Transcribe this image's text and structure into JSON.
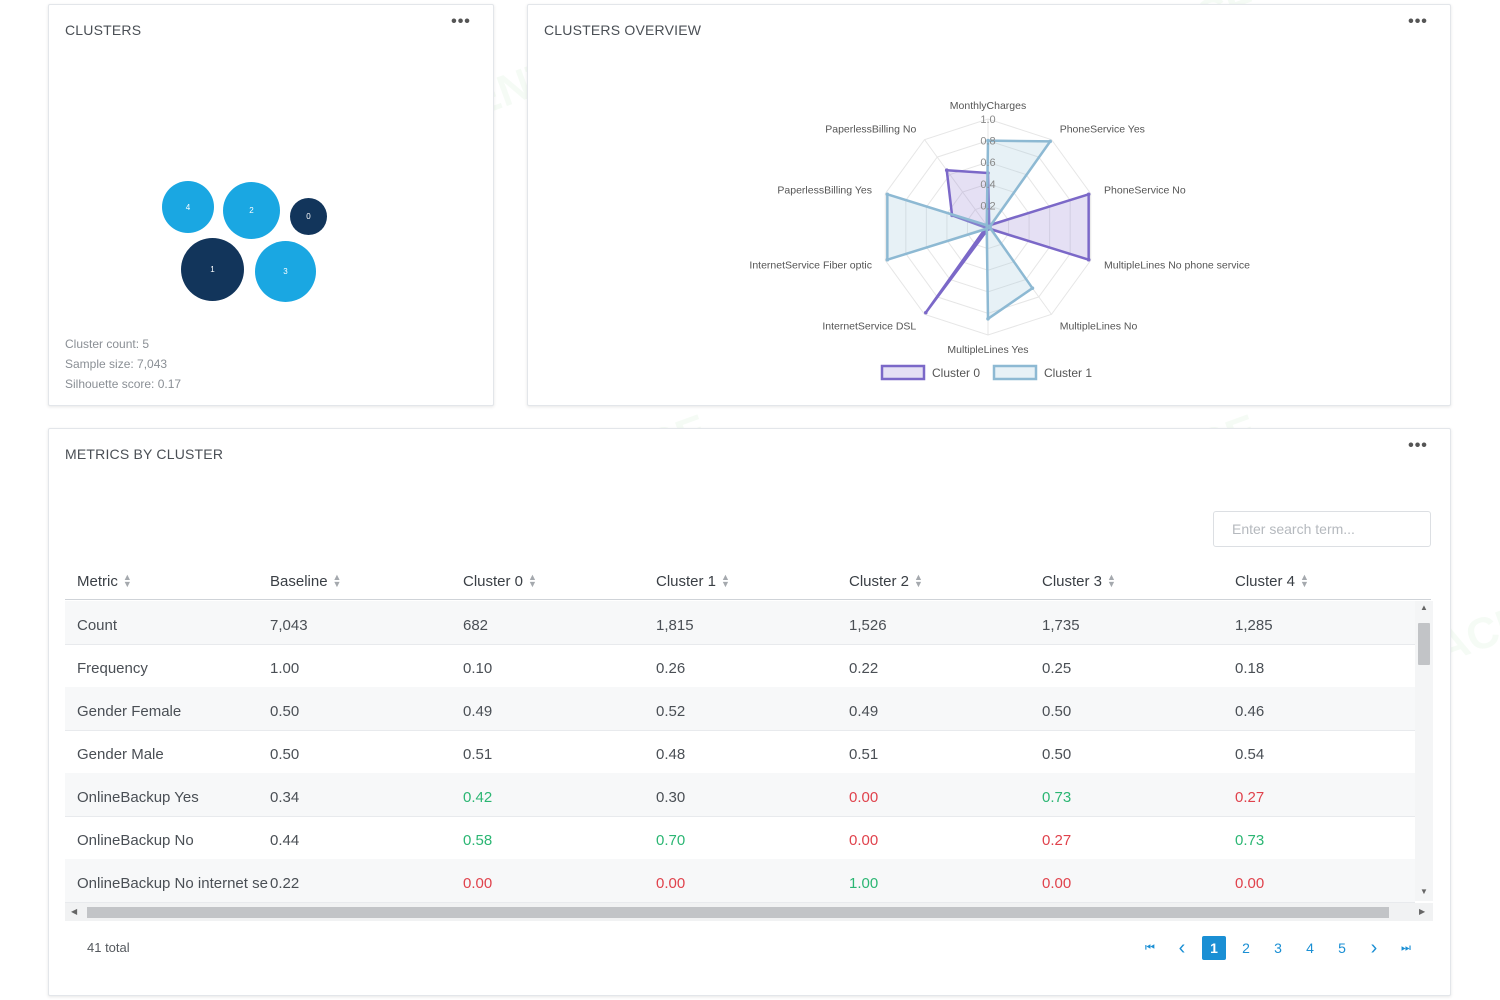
{
  "watermark": "AI TALENT SPACE",
  "clusters_card": {
    "title": "CLUSTERS",
    "more": "•••",
    "bubbles": [
      {
        "label": "4",
        "color": "#1aa7e2"
      },
      {
        "label": "2",
        "color": "#1aa7e2"
      },
      {
        "label": "0",
        "color": "#12355b"
      },
      {
        "label": "1",
        "color": "#12355b"
      },
      {
        "label": "3",
        "color": "#1aa7e2"
      }
    ],
    "stats": {
      "count": "Cluster count: 5",
      "sample": "Sample size: 7,043",
      "silhouette": "Silhouette score: 0.17"
    }
  },
  "overview_card": {
    "title": "CLUSTERS OVERVIEW",
    "more": "•••"
  },
  "chart_data": {
    "type": "radar",
    "axes": [
      "MonthlyCharges",
      "PhoneService Yes",
      "PhoneService No",
      "MultipleLines No phone service",
      "MultipleLines No",
      "MultipleLines Yes",
      "InternetService DSL",
      "InternetService Fiber optic",
      "PaperlessBilling Yes",
      "PaperlessBilling No"
    ],
    "tick_labels": [
      "0.2",
      "0.4",
      "0.6",
      "0.8",
      "1.0"
    ],
    "range": [
      0,
      1
    ],
    "series": [
      {
        "name": "Cluster 0",
        "color": "#7b68c8",
        "fill": "rgba(150,130,210,0.25)",
        "values": [
          0.5,
          0.02,
          0.98,
          0.98,
          0.02,
          0.02,
          0.98,
          0.02,
          0.35,
          0.65
        ]
      },
      {
        "name": "Cluster 1",
        "color": "#8db9d3",
        "fill": "rgba(160,200,220,0.25)",
        "values": [
          0.8,
          0.98,
          0.02,
          0.02,
          0.7,
          0.85,
          0.02,
          0.98,
          0.98,
          0.02
        ]
      }
    ],
    "legend_position": "bottom"
  },
  "metrics_card": {
    "title": "METRICS BY CLUSTER",
    "more": "•••",
    "search_placeholder": "Enter search term...",
    "headers": [
      "Metric",
      "Baseline",
      "Cluster 0",
      "Cluster 1",
      "Cluster 2",
      "Cluster 3",
      "Cluster 4"
    ],
    "rows": [
      [
        "Count",
        "7,043",
        "682",
        "1,815",
        "1,526",
        "1,735",
        "1,285"
      ],
      [
        "Frequency",
        "1.00",
        "0.10",
        "0.26",
        "0.22",
        "0.25",
        "0.18"
      ],
      [
        "Gender Female",
        "0.50",
        "0.49",
        "0.52",
        "0.49",
        "0.50",
        "0.46"
      ],
      [
        "Gender Male",
        "0.50",
        "0.51",
        "0.48",
        "0.51",
        "0.50",
        "0.54"
      ],
      [
        "OnlineBackup Yes",
        "0.34",
        "0.42",
        "0.30",
        "0.00",
        "0.73",
        "0.27"
      ],
      [
        "OnlineBackup No",
        "0.44",
        "0.58",
        "0.70",
        "0.00",
        "0.27",
        "0.73"
      ],
      [
        "OnlineBackup No internet service",
        "0.22",
        "0.00",
        "0.00",
        "1.00",
        "0.00",
        "0.00"
      ]
    ],
    "row_colors": [
      [
        "",
        "",
        "",
        "",
        "",
        "",
        ""
      ],
      [
        "",
        "",
        "",
        "",
        "",
        "",
        ""
      ],
      [
        "",
        "",
        "",
        "",
        "",
        "",
        ""
      ],
      [
        "",
        "",
        "",
        "",
        "",
        "",
        ""
      ],
      [
        "",
        "",
        "pos",
        "",
        "neg",
        "pos",
        "neg"
      ],
      [
        "",
        "",
        "pos",
        "pos",
        "neg",
        "neg",
        "pos"
      ],
      [
        "",
        "",
        "neg",
        "neg",
        "pos",
        "neg",
        "neg"
      ]
    ],
    "total": "41 total",
    "pagination": {
      "first": "⏮",
      "prev": "‹",
      "pages": [
        "1",
        "2",
        "3",
        "4",
        "5"
      ],
      "current": "1",
      "next": "›",
      "last": "⏭"
    }
  }
}
